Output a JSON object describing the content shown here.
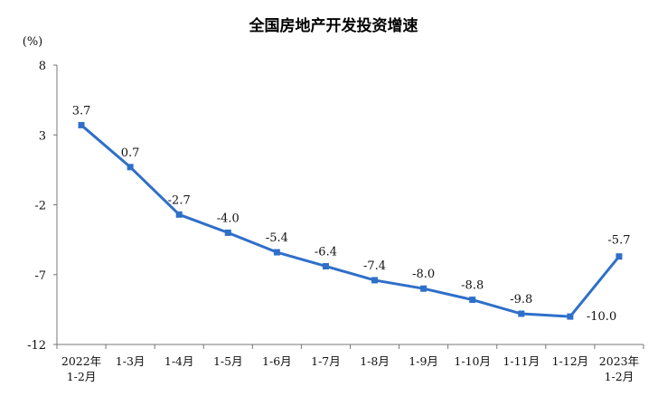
{
  "chart_data": {
    "type": "line",
    "title": "全国房地产开发投资增速",
    "ylabel": "(%)",
    "xlabel": "",
    "ylim": [
      -12,
      8
    ],
    "yticks": [
      "8",
      "3",
      "-2",
      "-7",
      "-12"
    ],
    "grid": false,
    "categories": [
      [
        "2022年",
        "1-2月"
      ],
      [
        "1-3月"
      ],
      [
        "1-4月"
      ],
      [
        "1-5月"
      ],
      [
        "1-6月"
      ],
      [
        "1-7月"
      ],
      [
        "1-8月"
      ],
      [
        "1-9月"
      ],
      [
        "1-10月"
      ],
      [
        "1-11月"
      ],
      [
        "1-12月"
      ],
      [
        "2023年",
        "1-2月"
      ]
    ],
    "series": [
      {
        "values": [
          3.7,
          0.7,
          -2.7,
          -4.0,
          -5.4,
          -6.4,
          -7.4,
          -8.0,
          -8.8,
          -9.8,
          -10.0,
          -5.7
        ],
        "labels": [
          "3.7",
          "0.7",
          "-2.7",
          "-4.0",
          "-5.4",
          "-6.4",
          "-7.4",
          "-8.0",
          "-8.8",
          "-9.8",
          "-10.0",
          "-5.7"
        ],
        "color": "#2f6fc9"
      }
    ]
  }
}
